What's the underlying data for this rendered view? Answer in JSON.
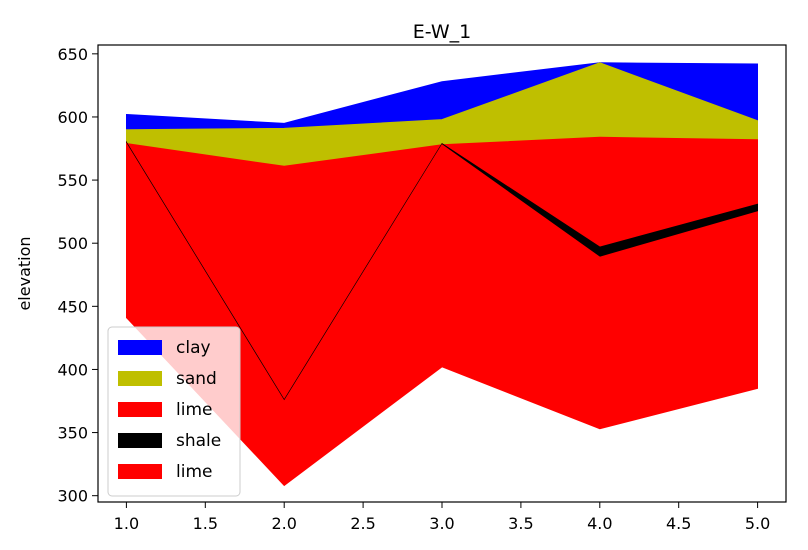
{
  "chart_data": {
    "type": "area",
    "title": "E-W_1",
    "xlabel": "",
    "ylabel": "elevation",
    "xlim": [
      0.82,
      5.18
    ],
    "ylim": [
      295,
      657
    ],
    "x": [
      1.0,
      2.0,
      3.0,
      4.0,
      5.0
    ],
    "xticks": [
      1.0,
      1.5,
      2.0,
      2.5,
      3.0,
      3.5,
      4.0,
      4.5,
      5.0
    ],
    "xtick_labels": [
      "1.0",
      "1.5",
      "2.0",
      "2.5",
      "3.0",
      "3.5",
      "4.0",
      "4.5",
      "5.0"
    ],
    "yticks": [
      300,
      350,
      400,
      450,
      500,
      550,
      600,
      650
    ],
    "ytick_labels": [
      "300",
      "350",
      "400",
      "450",
      "500",
      "550",
      "600",
      "650"
    ],
    "grid": false,
    "legend_position": "lower-left",
    "layers": [
      {
        "name": "clay",
        "color": "#0000ff",
        "top": [
          602,
          595,
          628,
          643,
          642
        ],
        "bottom": [
          590,
          591,
          598,
          643,
          597
        ]
      },
      {
        "name": "sand",
        "color": "#bfbf00",
        "top": [
          590,
          591,
          598,
          643,
          597
        ],
        "bottom": [
          579,
          561,
          578,
          584,
          582
        ]
      },
      {
        "name": "lime",
        "color": "#ff0000",
        "top": [
          579,
          561,
          578,
          584,
          582
        ],
        "bottom": [
          580,
          376,
          579,
          497,
          531
        ]
      },
      {
        "name": "shale",
        "color": "#000000",
        "top": [
          580,
          376,
          579,
          497,
          531
        ],
        "bottom": [
          579,
          375,
          578,
          489,
          525
        ]
      },
      {
        "name": "lime",
        "color": "#ff0000",
        "top": [
          579,
          375,
          578,
          489,
          525
        ],
        "bottom": [
          441,
          308,
          402,
          353,
          385
        ]
      }
    ]
  }
}
